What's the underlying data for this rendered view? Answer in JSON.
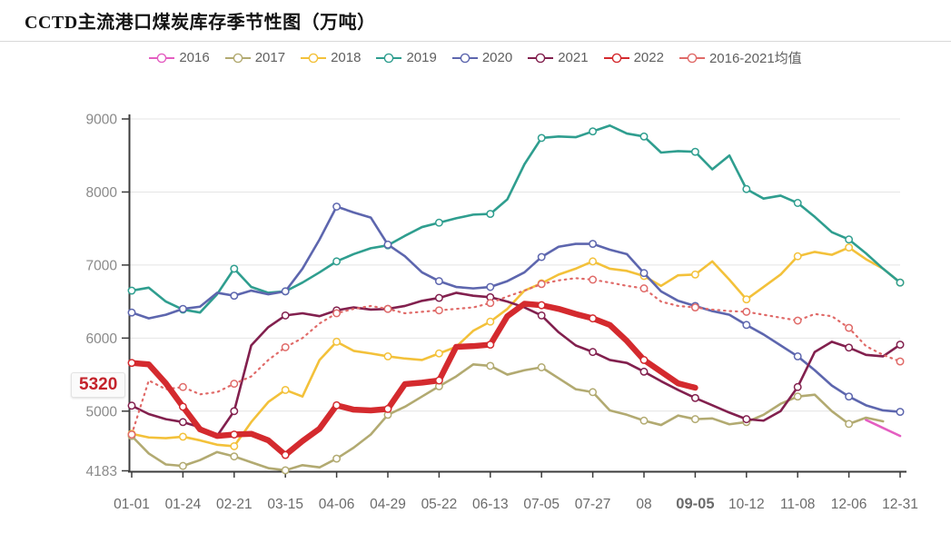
{
  "title": "CCTD主流港口煤炭库存季节性图（万吨）",
  "current_value": {
    "label": "5320",
    "value": 5320,
    "color": "#c4232b"
  },
  "highlight_color": "#cf1f2f",
  "legend": [
    {
      "label": "2016",
      "color": "#e45ec1"
    },
    {
      "label": "2017",
      "color": "#b2aa71"
    },
    {
      "label": "2018",
      "color": "#f3c13a"
    },
    {
      "label": "2019",
      "color": "#2f9e8f"
    },
    {
      "label": "2020",
      "color": "#5d66ae"
    },
    {
      "label": "2021",
      "color": "#82204e"
    },
    {
      "label": "2022",
      "color": "#d42a2e"
    },
    {
      "label": "2016-2021均值",
      "color": "#e06a68"
    }
  ],
  "chart_data": {
    "type": "line",
    "title": "CCTD主流港口煤炭库存季节性图（万吨）",
    "ylim": [
      4183,
      9000
    ],
    "y_ticks": [
      4183,
      5000,
      6000,
      7000,
      8000,
      9000
    ],
    "grid": true,
    "legend_position": "top",
    "x_tick_labels": [
      "01-01",
      "01-24",
      "02-21",
      "03-15",
      "04-06",
      "04-29",
      "05-22",
      "06-13",
      "07-05",
      "07-27",
      "08",
      "09-05",
      "10-12",
      "11-08",
      "12-06",
      "12-31"
    ],
    "highlighted_x_tick": "09-05",
    "points_per_tick_interval": 3,
    "annotation": {
      "y_value": 5320,
      "label": "5320",
      "x_label": "09-05"
    },
    "series": [
      {
        "name": "2016",
        "color": "#e45ec1",
        "markers": false,
        "values": [
          null,
          null,
          null,
          null,
          null,
          null,
          null,
          null,
          null,
          null,
          null,
          null,
          null,
          null,
          null,
          null,
          null,
          null,
          null,
          null,
          null,
          null,
          null,
          null,
          null,
          null,
          null,
          null,
          null,
          null,
          null,
          null,
          null,
          null,
          null,
          null,
          null,
          null,
          null,
          null,
          null,
          null,
          null,
          4880,
          4770,
          4660
        ]
      },
      {
        "name": "2017",
        "color": "#b2aa71",
        "values": [
          4660,
          4420,
          4270,
          4250,
          4330,
          4440,
          4380,
          4300,
          4220,
          4190,
          4260,
          4230,
          4350,
          4500,
          4680,
          4950,
          5060,
          5200,
          5340,
          5475,
          5640,
          5620,
          5500,
          5560,
          5600,
          5450,
          5300,
          5260,
          5010,
          4950,
          4870,
          4810,
          4940,
          4890,
          4900,
          4820,
          4850,
          4950,
          5100,
          5200,
          5225,
          5000,
          4825,
          4910,
          4860,
          null
        ]
      },
      {
        "name": "2018",
        "color": "#f3c13a",
        "values": [
          4690,
          4640,
          4630,
          4650,
          4600,
          4540,
          4520,
          4850,
          5125,
          5290,
          5200,
          5700,
          5950,
          5825,
          5790,
          5750,
          5720,
          5700,
          5790,
          5880,
          6100,
          6225,
          6400,
          6650,
          6750,
          6870,
          6950,
          7050,
          6950,
          6920,
          6850,
          6715,
          6860,
          6870,
          7050,
          6800,
          6530,
          6700,
          6870,
          7120,
          7180,
          7140,
          7240,
          7080,
          6950,
          6760
        ]
      },
      {
        "name": "2019",
        "color": "#2f9e8f",
        "values": [
          6650,
          6690,
          6500,
          6390,
          6350,
          6600,
          6950,
          6700,
          6620,
          6640,
          6760,
          6900,
          7050,
          7150,
          7230,
          7270,
          7400,
          7520,
          7580,
          7640,
          7690,
          7700,
          7900,
          8380,
          8740,
          8760,
          8750,
          8830,
          8910,
          8800,
          8760,
          8540,
          8560,
          8550,
          8310,
          8500,
          8040,
          7910,
          7950,
          7850,
          7660,
          7450,
          7350,
          7160,
          6950,
          6760
        ]
      },
      {
        "name": "2020",
        "color": "#5d66ae",
        "values": [
          6350,
          6270,
          6320,
          6400,
          6430,
          6620,
          6580,
          6650,
          6600,
          6640,
          6950,
          7350,
          7800,
          7720,
          7650,
          7280,
          7120,
          6900,
          6780,
          6700,
          6680,
          6700,
          6780,
          6900,
          7110,
          7250,
          7290,
          7290,
          7210,
          7150,
          6890,
          6640,
          6510,
          6440,
          6370,
          6320,
          6180,
          6050,
          5900,
          5750,
          5560,
          5350,
          5200,
          5080,
          5010,
          4990
        ]
      },
      {
        "name": "2021",
        "color": "#82204e",
        "values": [
          5075,
          4960,
          4890,
          4850,
          4780,
          4660,
          5000,
          5900,
          6150,
          6310,
          6340,
          6300,
          6380,
          6420,
          6390,
          6400,
          6440,
          6510,
          6550,
          6620,
          6580,
          6560,
          6500,
          6420,
          6310,
          6080,
          5900,
          5810,
          5700,
          5660,
          5540,
          5410,
          5290,
          5180,
          5080,
          4980,
          4890,
          4870,
          5000,
          5330,
          5810,
          5950,
          5870,
          5770,
          5750,
          5910
        ]
      },
      {
        "name": "2016-2021均值",
        "color": "#e06a68",
        "dotted": true,
        "values": [
          4680,
          5420,
          5300,
          5330,
          5230,
          5260,
          5375,
          5475,
          5700,
          5875,
          6000,
          6200,
          6340,
          6400,
          6440,
          6400,
          6340,
          6360,
          6380,
          6400,
          6420,
          6480,
          6570,
          6650,
          6740,
          6790,
          6820,
          6800,
          6760,
          6715,
          6680,
          6500,
          6440,
          6420,
          6390,
          6370,
          6360,
          6320,
          6280,
          6240,
          6330,
          6300,
          6140,
          5890,
          5770,
          5680
        ]
      },
      {
        "name": "2022",
        "color": "#d42a2e",
        "thick": true,
        "values": [
          5660,
          5640,
          5380,
          5060,
          4750,
          4660,
          4680,
          4690,
          4600,
          4400,
          4590,
          4760,
          5080,
          5020,
          5010,
          5030,
          5370,
          5390,
          5420,
          5880,
          5890,
          5910,
          6300,
          6470,
          6450,
          6400,
          6330,
          6270,
          6180,
          5960,
          5700,
          5540,
          5380,
          5320,
          null,
          null,
          null,
          null,
          null,
          null,
          null,
          null,
          null,
          null,
          null,
          null
        ]
      }
    ]
  }
}
